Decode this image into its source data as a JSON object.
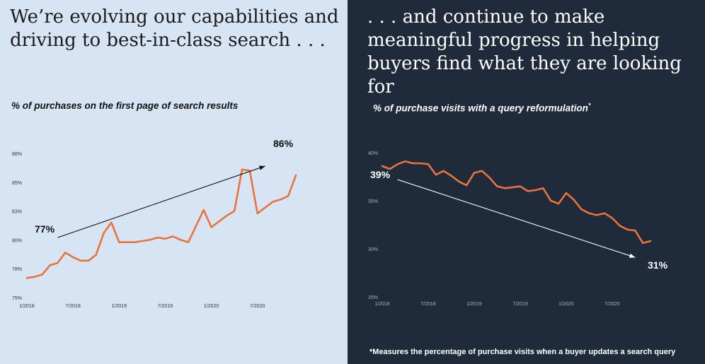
{
  "left": {
    "headline": "We’re evolving our capabilities and driving to best-in-class search . . .",
    "subtitle": "% of purchases on the first page of search results",
    "start_callout": "77%",
    "end_callout": "86%"
  },
  "right": {
    "headline": ". . . and continue to make meaningful progress in helping buyers find what they are looking for",
    "subtitle": "% of purchase visits with a query reformulation",
    "subtitle_mark": "*",
    "start_callout": "39%",
    "end_callout": "31%",
    "footnote": "*Measures the percentage of purchase visits when a buyer updates a search query"
  },
  "colors": {
    "line": "#e8743b",
    "left_background": "#d6e4f3",
    "right_background": "#1f2a3a"
  },
  "chart_data": [
    {
      "type": "line",
      "title": "% of purchases on the first page of search results",
      "y_tick_labels": [
        "75%",
        "78%",
        "80%",
        "83%",
        "85%",
        "88%"
      ],
      "y_ticks": [
        75,
        77.5,
        80,
        82.5,
        85,
        87.5
      ],
      "ylim": [
        75,
        87.5
      ],
      "x_tick_labels": [
        "1/2018",
        "7/2018",
        "1/2019",
        "7/2019",
        "1/2020",
        "7/2020"
      ],
      "x_ticks": [
        0,
        6,
        12,
        18,
        24,
        30
      ],
      "xlim": [
        0,
        35
      ],
      "grid": false,
      "series": [
        {
          "x": [
            0,
            1,
            2,
            3,
            4,
            5,
            6,
            7,
            8,
            9,
            10,
            11,
            12,
            13,
            14,
            15,
            16,
            17,
            18,
            19,
            20,
            21,
            22,
            23,
            24,
            25,
            26,
            27,
            28,
            29,
            30,
            31,
            32,
            33,
            34,
            35
          ],
          "values": [
            76.7,
            76.8,
            77.0,
            77.8,
            78.0,
            78.9,
            78.5,
            78.2,
            78.2,
            78.7,
            80.6,
            81.5,
            79.8,
            79.8,
            79.8,
            79.9,
            80.0,
            80.2,
            80.1,
            80.3,
            80.0,
            79.8,
            81.2,
            82.6,
            81.1,
            81.6,
            82.1,
            82.5,
            86.1,
            86.0,
            82.3,
            82.8,
            83.3,
            83.5,
            83.8,
            85.6
          ]
        }
      ],
      "annotations": [
        {
          "text": "77%",
          "from": [
            4,
            80.2
          ],
          "to": [
            31,
            86.4
          ]
        },
        {
          "text": "86%"
        }
      ]
    },
    {
      "type": "line",
      "title": "% of purchase visits with a query reformulation",
      "y_tick_labels": [
        "25%",
        "30%",
        "35%",
        "40%"
      ],
      "y_ticks": [
        25,
        30,
        35,
        40
      ],
      "ylim": [
        25,
        40
      ],
      "x_tick_labels": [
        "1/2018",
        "7/2018",
        "1/2019",
        "7/2019",
        "1/2020",
        "7/2020"
      ],
      "x_ticks": [
        0,
        6,
        12,
        18,
        24,
        30
      ],
      "xlim": [
        0,
        35
      ],
      "grid": false,
      "series": [
        {
          "x": [
            0,
            1,
            2,
            3,
            4,
            5,
            6,
            7,
            8,
            9,
            10,
            11,
            12,
            13,
            14,
            15,
            16,
            17,
            18,
            19,
            20,
            21,
            22,
            23,
            24,
            25,
            26,
            27,
            28,
            29,
            30,
            31,
            32,
            33,
            34,
            35
          ],
          "values": [
            38.6,
            38.3,
            38.8,
            39.1,
            38.9,
            38.9,
            38.8,
            37.7,
            38.1,
            37.6,
            37.0,
            36.6,
            37.9,
            38.1,
            37.4,
            36.5,
            36.3,
            36.4,
            36.5,
            36.0,
            36.1,
            36.3,
            35.0,
            34.7,
            35.8,
            35.1,
            34.1,
            33.7,
            33.5,
            33.7,
            33.2,
            32.4,
            32.0,
            31.9,
            30.6,
            30.8
          ]
        }
      ],
      "annotations": [
        {
          "text": "39%",
          "from": [
            2,
            37.2
          ],
          "to": [
            33,
            29.1
          ]
        },
        {
          "text": "31%"
        }
      ]
    }
  ]
}
